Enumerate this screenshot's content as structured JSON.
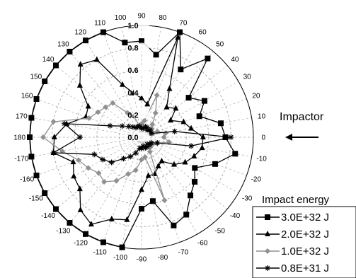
{
  "chart_data": {
    "type": "polar-line",
    "angle_ticks": [
      "90",
      "80",
      "70",
      "60",
      "50",
      "40",
      "30",
      "20",
      "10",
      "0",
      "-10",
      "-20",
      "-30",
      "-40",
      "-50",
      "-60",
      "-70",
      "-80",
      "-90",
      "-100",
      "-110",
      "-120",
      "-130",
      "-140",
      "-150",
      "-160",
      "-170",
      "180",
      "170",
      "160",
      "150",
      "140",
      "130",
      "120",
      "110",
      "100"
    ],
    "angle_tick_values": [
      90,
      80,
      70,
      60,
      50,
      40,
      30,
      20,
      10,
      0,
      -10,
      -20,
      -30,
      -40,
      -50,
      -60,
      -70,
      -80,
      -90,
      -100,
      -110,
      -120,
      -130,
      -140,
      -150,
      -160,
      -170,
      180,
      170,
      160,
      150,
      140,
      130,
      120,
      110,
      100
    ],
    "radial_ticks": [
      "0.0",
      "0.2",
      "0.4",
      "0.6",
      "0.8",
      "1.0"
    ],
    "radial_tick_values": [
      0.0,
      0.2,
      0.4,
      0.6,
      0.8,
      1.0
    ],
    "rlim": [
      0,
      1.0
    ],
    "grid": true,
    "annotation": {
      "text": "Impactor",
      "arrow": "pointing left toward 0 degrees"
    },
    "legend_title": "Impact energy",
    "legend_position": "bottom-right",
    "series": [
      {
        "name": "3.0E+32 J",
        "marker": "square",
        "color": "#000000",
        "angles": [
          -90,
          -80,
          -70,
          -60,
          -50,
          -40,
          -30,
          -20,
          -10,
          0,
          10,
          20,
          30,
          40,
          50,
          60,
          70,
          80,
          90,
          100,
          110,
          120,
          130,
          140,
          150,
          160,
          170,
          180,
          -170,
          -160,
          -150,
          -140,
          -130,
          -120,
          -110,
          -100
        ],
        "values": [
          0.64,
          0.58,
          0.84,
          0.8,
          0.68,
          0.62,
          0.55,
          0.7,
          0.85,
          0.75,
          0.72,
          0.55,
          0.65,
          0.55,
          0.92,
          0.7,
          1.0,
          0.75,
          0.86,
          0.86,
          1.0,
          1.0,
          1.0,
          1.0,
          1.0,
          1.0,
          1.0,
          1.0,
          1.0,
          1.0,
          1.0,
          1.0,
          1.0,
          1.0,
          1.0,
          1.0
        ]
      },
      {
        "name": "2.0E+32 J",
        "marker": "triangle",
        "color": "#000000",
        "angles": [
          -90,
          -80,
          -70,
          -60,
          -50,
          -40,
          -30,
          -20,
          -10,
          0,
          10,
          20,
          30,
          40,
          50,
          60,
          70,
          80,
          90,
          100,
          110,
          120,
          130,
          140,
          150,
          160,
          170,
          180,
          -170,
          -160,
          -150,
          -140,
          -130,
          -120,
          -110,
          -100
        ],
        "values": [
          0.47,
          0.35,
          0.35,
          0.3,
          0.28,
          0.38,
          0.45,
          0.5,
          0.55,
          0.55,
          0.45,
          0.4,
          0.3,
          0.4,
          0.35,
          0.5,
          0.95,
          0.3,
          0.35,
          0.4,
          0.5,
          0.8,
          0.85,
          0.72,
          0.55,
          0.53,
          0.68,
          0.78,
          0.8,
          0.65,
          0.7,
          0.72,
          0.85,
          0.9,
          0.78,
          0.75
        ]
      },
      {
        "name": "1.0E+32 J",
        "marker": "diamond",
        "color": "#909090",
        "angles": [
          -90,
          -80,
          -70,
          -60,
          -50,
          -40,
          -30,
          -20,
          -10,
          0,
          10,
          20,
          30,
          40,
          50,
          60,
          70,
          80,
          90,
          100,
          110,
          120,
          130,
          140,
          150,
          160,
          170,
          180,
          -170,
          -160,
          -150,
          -140,
          -130,
          -120,
          -110,
          -100
        ],
        "values": [
          0.2,
          0.18,
          0.6,
          0.15,
          0.12,
          0.1,
          0.12,
          0.15,
          0.25,
          0.2,
          0.22,
          0.15,
          0.1,
          0.12,
          0.15,
          0.25,
          0.4,
          0.15,
          0.12,
          0.1,
          0.2,
          0.25,
          0.4,
          0.42,
          0.45,
          0.5,
          0.8,
          0.88,
          0.72,
          0.6,
          0.55,
          0.5,
          0.52,
          0.45,
          0.35,
          0.3
        ]
      },
      {
        "name": "0.8E+31 J",
        "marker": "asterisk",
        "color": "#000000",
        "angles": [
          -90,
          -80,
          -70,
          -60,
          -50,
          -40,
          -30,
          -20,
          -10,
          0,
          10,
          20,
          30,
          40,
          50,
          60,
          70,
          80,
          90,
          100,
          110,
          120,
          130,
          140,
          150,
          160,
          170,
          180,
          -170,
          -160,
          -150,
          -140,
          -130,
          -120,
          -110,
          -100
        ],
        "values": [
          0.1,
          0.08,
          0.1,
          0.1,
          0.08,
          0.1,
          0.1,
          0.15,
          0.45,
          0.8,
          0.3,
          0.1,
          0.08,
          0.1,
          0.08,
          0.1,
          0.1,
          0.08,
          0.08,
          0.1,
          0.1,
          0.1,
          0.12,
          0.15,
          0.2,
          0.3,
          0.7,
          0.55,
          0.8,
          0.45,
          0.4,
          0.35,
          0.25,
          0.2,
          0.15,
          0.1
        ]
      }
    ]
  }
}
